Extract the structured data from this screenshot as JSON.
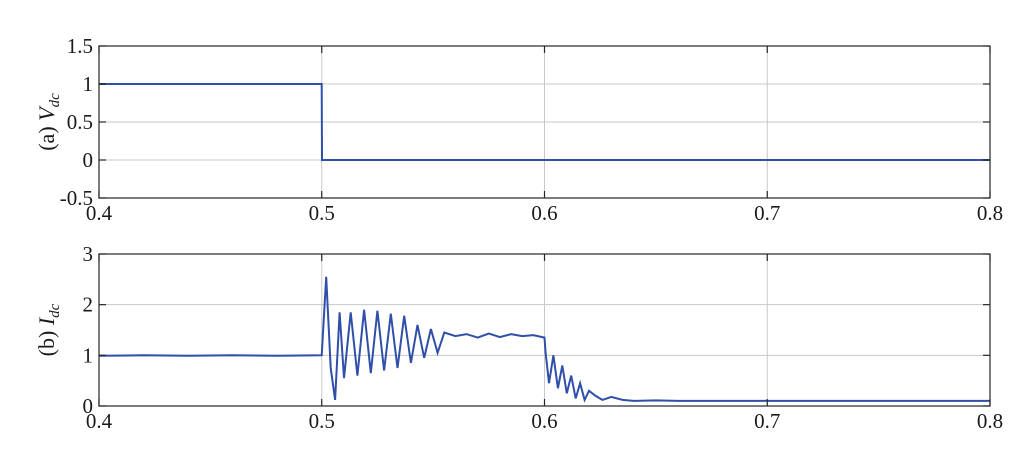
{
  "chart_data": [
    {
      "type": "line",
      "ylabel_prefix": "(a) ",
      "ylabel_var": "V",
      "ylabel_sub": "dc",
      "xlim": [
        0.4,
        0.8
      ],
      "ylim": [
        -0.5,
        1.5
      ],
      "xticks": [
        0.4,
        0.5,
        0.6,
        0.7,
        0.8
      ],
      "xtick_labels": [
        "0.4",
        "0.5",
        "0.6",
        "0.7",
        "0.8"
      ],
      "yticks": [
        -0.5,
        0,
        0.5,
        1,
        1.5
      ],
      "ytick_labels": [
        "-0.5",
        "0",
        "0.5",
        "1",
        "1.5"
      ],
      "grid": true,
      "color": "#2f4fa8",
      "series": [
        {
          "x": [
            0.4,
            0.45,
            0.5,
            0.5001,
            0.55,
            0.6,
            0.7,
            0.8
          ],
          "y": [
            1.0,
            1.0,
            1.0,
            0.0,
            0.0,
            0.0,
            0.0,
            0.0
          ]
        }
      ]
    },
    {
      "type": "line",
      "ylabel_prefix": "(b) ",
      "ylabel_var": "I",
      "ylabel_sub": "dc",
      "xlim": [
        0.4,
        0.8
      ],
      "ylim": [
        0,
        3
      ],
      "xticks": [
        0.4,
        0.5,
        0.6,
        0.7,
        0.8
      ],
      "xtick_labels": [
        "0.4",
        "0.5",
        "0.6",
        "0.7",
        "0.8"
      ],
      "yticks": [
        0,
        1,
        2,
        3
      ],
      "ytick_labels": [
        "0",
        "1",
        "2",
        "3"
      ],
      "grid": true,
      "color": "#2f4fa8",
      "series": [
        {
          "x": [
            0.4,
            0.42,
            0.44,
            0.46,
            0.48,
            0.5,
            0.502,
            0.504,
            0.506,
            0.508,
            0.51,
            0.513,
            0.516,
            0.519,
            0.522,
            0.525,
            0.528,
            0.531,
            0.534,
            0.537,
            0.54,
            0.543,
            0.546,
            0.549,
            0.552,
            0.555,
            0.56,
            0.565,
            0.57,
            0.575,
            0.58,
            0.585,
            0.59,
            0.595,
            0.6,
            0.6005,
            0.602,
            0.604,
            0.606,
            0.608,
            0.61,
            0.612,
            0.614,
            0.616,
            0.618,
            0.62,
            0.623,
            0.626,
            0.63,
            0.635,
            0.64,
            0.65,
            0.66,
            0.7,
            0.75,
            0.8
          ],
          "y": [
            0.99,
            1.0,
            0.99,
            1.0,
            0.99,
            1.0,
            2.55,
            0.75,
            0.12,
            1.85,
            0.55,
            1.85,
            0.6,
            1.9,
            0.65,
            1.88,
            0.7,
            1.82,
            0.75,
            1.78,
            0.85,
            1.6,
            0.95,
            1.52,
            1.05,
            1.45,
            1.38,
            1.42,
            1.35,
            1.43,
            1.36,
            1.42,
            1.38,
            1.4,
            1.35,
            1.05,
            0.45,
            1.0,
            0.35,
            0.8,
            0.25,
            0.6,
            0.15,
            0.45,
            0.12,
            0.3,
            0.2,
            0.12,
            0.18,
            0.12,
            0.1,
            0.11,
            0.1,
            0.1,
            0.1,
            0.1
          ]
        }
      ]
    }
  ]
}
